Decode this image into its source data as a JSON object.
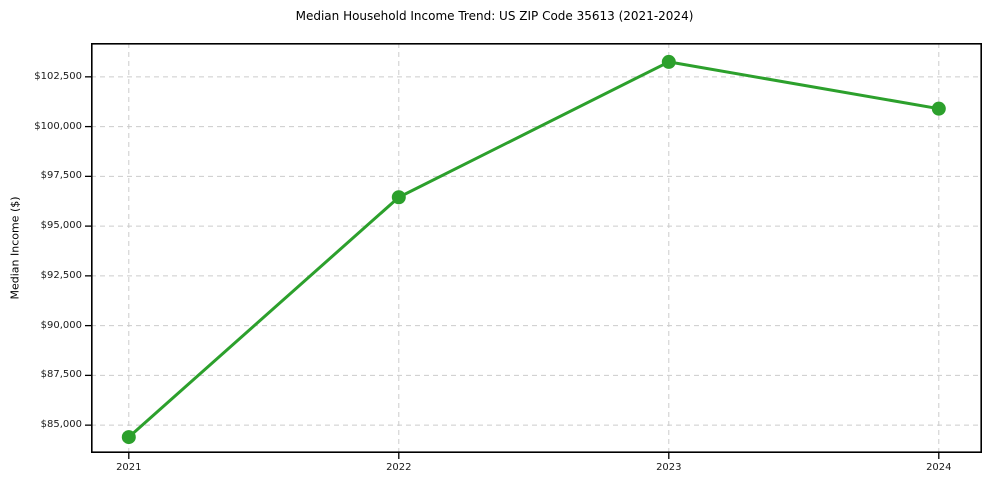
{
  "title": "Median Household Income Trend: US ZIP Code 35613 (2021-2024)",
  "chart_data": {
    "type": "line",
    "title": "Median Household Income Trend: US ZIP Code 35613 (2021-2024)",
    "xlabel": "",
    "ylabel": "Median Income ($)",
    "x": [
      2021,
      2022,
      2023,
      2024
    ],
    "categories": [
      "2021",
      "2022",
      "2023",
      "2024"
    ],
    "series": [
      {
        "name": "Median Household Income",
        "values": [
          84400,
          96450,
          103250,
          100900
        ]
      }
    ],
    "y_ticks": [
      85000,
      87500,
      90000,
      92500,
      95000,
      97500,
      100000,
      102500
    ],
    "y_tick_labels": [
      "$85,000",
      "$87,500",
      "$90,000",
      "$92,500",
      "$95,000",
      "$97,500",
      "$100,000",
      "$102,500"
    ],
    "xlim": [
      2020.86,
      2024.16
    ],
    "ylim": [
      83600,
      104200
    ],
    "grid": true,
    "grid_line_style": "dashed",
    "legend": "none",
    "colors": {
      "line": "#2ca02c",
      "marker": "#2ca02c",
      "grid": "#cccccc",
      "spine": "#000000",
      "text": "#000000",
      "background": "#ffffff"
    }
  }
}
